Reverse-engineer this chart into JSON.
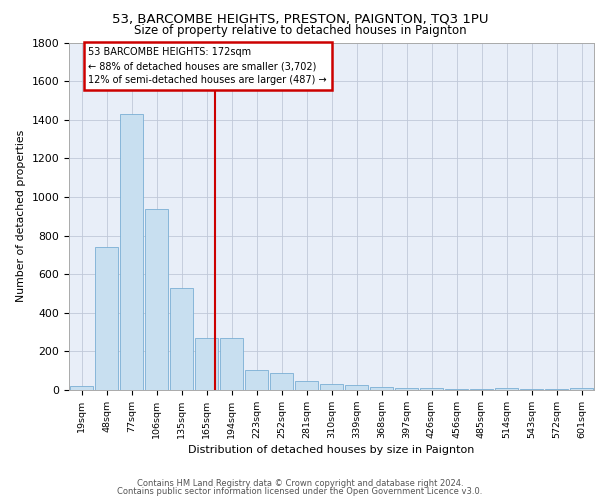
{
  "title1": "53, BARCOMBE HEIGHTS, PRESTON, PAIGNTON, TQ3 1PU",
  "title2": "Size of property relative to detached houses in Paignton",
  "xlabel": "Distribution of detached houses by size in Paignton",
  "ylabel": "Number of detached properties",
  "bins": [
    "19sqm",
    "48sqm",
    "77sqm",
    "106sqm",
    "135sqm",
    "165sqm",
    "194sqm",
    "223sqm",
    "252sqm",
    "281sqm",
    "310sqm",
    "339sqm",
    "368sqm",
    "397sqm",
    "426sqm",
    "456sqm",
    "485sqm",
    "514sqm",
    "543sqm",
    "572sqm",
    "601sqm"
  ],
  "values": [
    20,
    740,
    1430,
    940,
    530,
    270,
    270,
    105,
    90,
    48,
    30,
    25,
    15,
    10,
    8,
    5,
    4,
    10,
    4,
    3,
    10
  ],
  "bar_color": "#c8dff0",
  "bar_edge_color": "#7aafd4",
  "vline_x": 5.33,
  "vline_color": "#cc0000",
  "annotation_title": "53 BARCOMBE HEIGHTS: 172sqm",
  "annotation_line1": "← 88% of detached houses are smaller (3,702)",
  "annotation_line2": "12% of semi-detached houses are larger (487) →",
  "annotation_border_color": "#cc0000",
  "footer1": "Contains HM Land Registry data © Crown copyright and database right 2024.",
  "footer2": "Contains public sector information licensed under the Open Government Licence v3.0.",
  "ylim": [
    0,
    1800
  ],
  "background_color": "#e8eef8",
  "grid_color": "#c0c8d8",
  "fig_bg": "#ffffff"
}
